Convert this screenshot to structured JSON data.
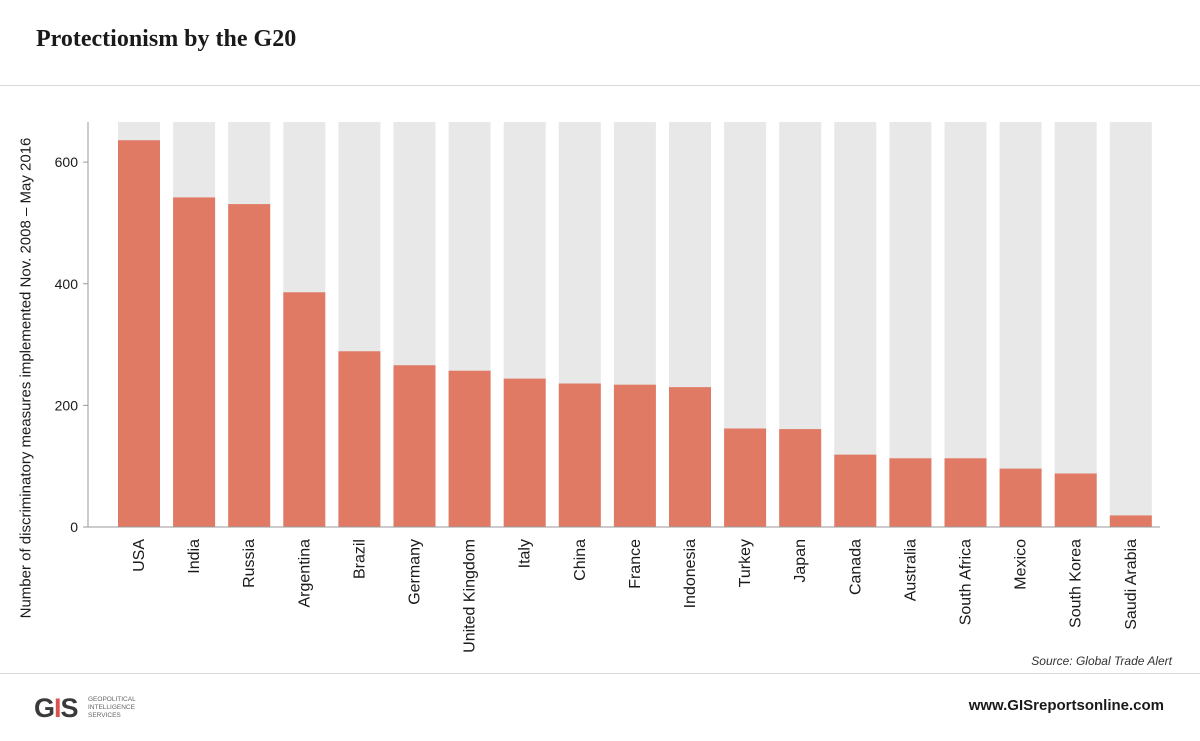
{
  "header": {
    "title": "Protectionism by the G20"
  },
  "footer": {
    "source": "Source: Global Trade Alert",
    "logo_mark": "GIS",
    "logo_lines": [
      "GEOPOLITICAL",
      "INTELLIGENCE",
      "SERVICES"
    ],
    "url": "www.GISreportsonline.com"
  },
  "colors": {
    "bar": "#e07a64",
    "track": "#e8e8e8",
    "axis": "#999999"
  },
  "chart_data": {
    "type": "bar",
    "title": "Protectionism by the G20",
    "xlabel": "",
    "ylabel": "Number of discriminatory measures implemented Nov. 2008 – May 2016",
    "categories": [
      "USA",
      "India",
      "Russia",
      "Argentina",
      "Brazil",
      "Germany",
      "United Kingdom",
      "Italy",
      "China",
      "France",
      "Indonesia",
      "Turkey",
      "Japan",
      "Canada",
      "Australia",
      "South Africa",
      "Mexico",
      "South Korea",
      "Saudi Arabia"
    ],
    "values": [
      636,
      542,
      531,
      386,
      289,
      266,
      257,
      244,
      236,
      234,
      230,
      162,
      161,
      119,
      113,
      113,
      96,
      88,
      19
    ],
    "ylim": [
      0,
      666
    ],
    "yticks": [
      0,
      200,
      400,
      600
    ],
    "grid": false,
    "legend": "none"
  }
}
